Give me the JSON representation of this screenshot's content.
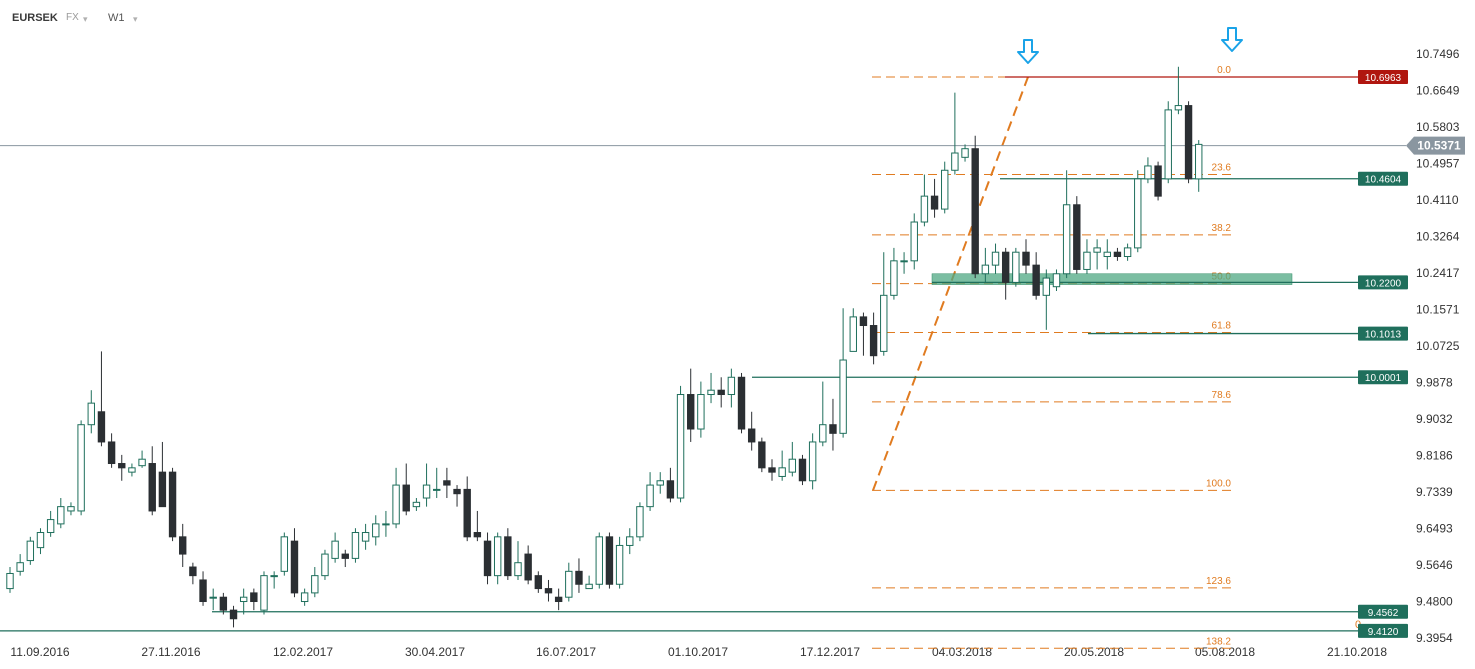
{
  "toolbar": {
    "symbol": "EURSEK",
    "instrument_type": "FX",
    "timeframe": "W1",
    "caret_glyph": "▾",
    "dropdown_icon": "chevron-down-icon"
  },
  "colors": {
    "bull_fill": "#ffffff",
    "bull_stroke": "#1f6f5c",
    "bear_fill": "#2b2f33",
    "fib": "#e07b20",
    "support_line": "#1f6f5c",
    "resistance_line": "#b0160f",
    "zone": "#4fa883",
    "current_price_line": "#8a96a0",
    "current_price_tag": "#8a96a0",
    "arrow": "#1aa3e8",
    "axis_text": "#333333"
  },
  "chart_data": {
    "type": "candlestick",
    "symbol": "EURSEK",
    "timeframe": "W1",
    "ylim": [
      9.38,
      10.8
    ],
    "y_ticks": [
      "10.7496",
      "10.6649",
      "10.5803",
      "10.4957",
      "10.4110",
      "10.3264",
      "10.2417",
      "10.1571",
      "10.0725",
      "9.9878",
      "9.9032",
      "9.8186",
      "9.7339",
      "9.6493",
      "9.5646",
      "9.4800",
      "9.3954"
    ],
    "x_ticks": [
      "11.09.2016",
      "27.11.2016",
      "12.02.2017",
      "30.04.2017",
      "16.07.2017",
      "01.10.2017",
      "17.12.2017",
      "04.03.2018",
      "20.05.2018",
      "05.08.2018",
      "21.10.2018"
    ],
    "current_price": "10.5371",
    "horizontal_levels": [
      {
        "label": "10.6963",
        "value": 10.6963,
        "kind": "resistance"
      },
      {
        "label": "10.4604",
        "value": 10.4604,
        "kind": "support"
      },
      {
        "label": "10.2200",
        "value": 10.22,
        "kind": "support"
      },
      {
        "label": "10.1013",
        "value": 10.1013,
        "kind": "support"
      },
      {
        "label": "10.0001",
        "value": 10.0001,
        "kind": "support"
      },
      {
        "label": "9.4562",
        "value": 9.4562,
        "kind": "support"
      },
      {
        "label": "9.4120",
        "value": 9.412,
        "kind": "support"
      }
    ],
    "support_zone": [
      10.215,
      10.24
    ],
    "fibonacci": [
      {
        "label": "0.0",
        "value": 10.6963
      },
      {
        "label": "23.6",
        "value": 10.4701
      },
      {
        "label": "38.2",
        "value": 10.3302
      },
      {
        "label": "50.0",
        "value": 10.217
      },
      {
        "label": "61.8",
        "value": 10.1039
      },
      {
        "label": "78.6",
        "value": 9.9428
      },
      {
        "label": "100.0",
        "value": 9.7377
      },
      {
        "label": "123.6",
        "value": 9.5115
      },
      {
        "label": "138.2",
        "value": 9.3716
      }
    ],
    "zero_marker": "0",
    "candles": [
      [
        9.51,
        9.545,
        9.5,
        9.56
      ],
      [
        9.55,
        9.57,
        9.54,
        9.59
      ],
      [
        9.575,
        9.62,
        9.565,
        9.63
      ],
      [
        9.605,
        9.64,
        9.59,
        9.65
      ],
      [
        9.64,
        9.67,
        9.63,
        9.69
      ],
      [
        9.66,
        9.7,
        9.65,
        9.72
      ],
      [
        9.69,
        9.7,
        9.68,
        9.71
      ],
      [
        9.69,
        9.89,
        9.68,
        9.9
      ],
      [
        9.89,
        9.94,
        9.87,
        9.97
      ],
      [
        9.92,
        9.85,
        9.84,
        10.06
      ],
      [
        9.85,
        9.8,
        9.79,
        9.87
      ],
      [
        9.8,
        9.79,
        9.76,
        9.82
      ],
      [
        9.78,
        9.79,
        9.77,
        9.8
      ],
      [
        9.795,
        9.81,
        9.79,
        9.83
      ],
      [
        9.8,
        9.69,
        9.68,
        9.84
      ],
      [
        9.78,
        9.7,
        9.7,
        9.85
      ],
      [
        9.78,
        9.63,
        9.62,
        9.79
      ],
      [
        9.63,
        9.59,
        9.56,
        9.66
      ],
      [
        9.56,
        9.54,
        9.52,
        9.57
      ],
      [
        9.53,
        9.48,
        9.47,
        9.55
      ],
      [
        9.49,
        9.49,
        9.46,
        9.51
      ],
      [
        9.49,
        9.46,
        9.45,
        9.5
      ],
      [
        9.46,
        9.44,
        9.42,
        9.47
      ],
      [
        9.48,
        9.49,
        9.45,
        9.51
      ],
      [
        9.5,
        9.48,
        9.46,
        9.51
      ],
      [
        9.46,
        9.54,
        9.45,
        9.55
      ],
      [
        9.54,
        9.54,
        9.51,
        9.55
      ],
      [
        9.55,
        9.63,
        9.54,
        9.64
      ],
      [
        9.62,
        9.5,
        9.49,
        9.65
      ],
      [
        9.48,
        9.5,
        9.47,
        9.51
      ],
      [
        9.5,
        9.54,
        9.49,
        9.56
      ],
      [
        9.54,
        9.59,
        9.53,
        9.6
      ],
      [
        9.58,
        9.62,
        9.57,
        9.64
      ],
      [
        9.59,
        9.58,
        9.56,
        9.6
      ],
      [
        9.58,
        9.64,
        9.57,
        9.65
      ],
      [
        9.62,
        9.64,
        9.6,
        9.66
      ],
      [
        9.63,
        9.66,
        9.61,
        9.68
      ],
      [
        9.66,
        9.66,
        9.63,
        9.69
      ],
      [
        9.66,
        9.75,
        9.65,
        9.79
      ],
      [
        9.75,
        9.69,
        9.68,
        9.8
      ],
      [
        9.7,
        9.71,
        9.69,
        9.72
      ],
      [
        9.72,
        9.75,
        9.7,
        9.8
      ],
      [
        9.74,
        9.74,
        9.72,
        9.79
      ],
      [
        9.76,
        9.75,
        9.72,
        9.79
      ],
      [
        9.74,
        9.73,
        9.7,
        9.75
      ],
      [
        9.74,
        9.63,
        9.62,
        9.77
      ],
      [
        9.64,
        9.63,
        9.62,
        9.69
      ],
      [
        9.62,
        9.54,
        9.52,
        9.64
      ],
      [
        9.54,
        9.63,
        9.52,
        9.64
      ],
      [
        9.63,
        9.54,
        9.53,
        9.65
      ],
      [
        9.54,
        9.57,
        9.53,
        9.62
      ],
      [
        9.59,
        9.53,
        9.52,
        9.61
      ],
      [
        9.54,
        9.51,
        9.5,
        9.55
      ],
      [
        9.51,
        9.5,
        9.48,
        9.53
      ],
      [
        9.49,
        9.48,
        9.46,
        9.51
      ],
      [
        9.49,
        9.55,
        9.48,
        9.57
      ],
      [
        9.55,
        9.52,
        9.5,
        9.58
      ],
      [
        9.51,
        9.52,
        9.51,
        9.54
      ],
      [
        9.52,
        9.63,
        9.51,
        9.64
      ],
      [
        9.63,
        9.52,
        9.51,
        9.64
      ],
      [
        9.52,
        9.61,
        9.51,
        9.63
      ],
      [
        9.61,
        9.63,
        9.59,
        9.65
      ],
      [
        9.63,
        9.7,
        9.62,
        9.71
      ],
      [
        9.7,
        9.75,
        9.69,
        9.78
      ],
      [
        9.75,
        9.76,
        9.73,
        9.78
      ],
      [
        9.76,
        9.72,
        9.71,
        9.79
      ],
      [
        9.72,
        9.96,
        9.71,
        9.98
      ],
      [
        9.96,
        9.88,
        9.85,
        10.02
      ],
      [
        9.88,
        9.96,
        9.86,
        9.99
      ],
      [
        9.96,
        9.97,
        9.94,
        10.01
      ],
      [
        9.97,
        9.96,
        9.93,
        10.0
      ],
      [
        9.96,
        10.0,
        9.93,
        10.02
      ],
      [
        10.0,
        9.88,
        9.87,
        10.01
      ],
      [
        9.88,
        9.85,
        9.83,
        9.92
      ],
      [
        9.85,
        9.79,
        9.78,
        9.86
      ],
      [
        9.79,
        9.78,
        9.76,
        9.81
      ],
      [
        9.77,
        9.79,
        9.76,
        9.83
      ],
      [
        9.78,
        9.81,
        9.77,
        9.85
      ],
      [
        9.81,
        9.76,
        9.75,
        9.82
      ],
      [
        9.76,
        9.85,
        9.74,
        9.87
      ],
      [
        9.85,
        9.89,
        9.84,
        9.99
      ],
      [
        9.89,
        9.87,
        9.83,
        9.95
      ],
      [
        9.87,
        10.04,
        9.86,
        10.16
      ],
      [
        10.06,
        10.14,
        10.06,
        10.16
      ],
      [
        10.14,
        10.12,
        10.05,
        10.15
      ],
      [
        10.12,
        10.05,
        10.03,
        10.15
      ],
      [
        10.06,
        10.19,
        10.05,
        10.29
      ],
      [
        10.19,
        10.27,
        10.18,
        10.3
      ],
      [
        10.27,
        10.27,
        10.24,
        10.29
      ],
      [
        10.27,
        10.36,
        10.25,
        10.38
      ],
      [
        10.36,
        10.42,
        10.35,
        10.47
      ],
      [
        10.42,
        10.39,
        10.37,
        10.46
      ],
      [
        10.39,
        10.48,
        10.38,
        10.5
      ],
      [
        10.48,
        10.52,
        10.47,
        10.66
      ],
      [
        10.51,
        10.53,
        10.5,
        10.54
      ],
      [
        10.53,
        10.24,
        10.23,
        10.56
      ],
      [
        10.24,
        10.26,
        10.22,
        10.3
      ],
      [
        10.26,
        10.29,
        10.24,
        10.31
      ],
      [
        10.29,
        10.22,
        10.18,
        10.3
      ],
      [
        10.22,
        10.29,
        10.21,
        10.3
      ],
      [
        10.29,
        10.26,
        10.24,
        10.32
      ],
      [
        10.26,
        10.19,
        10.18,
        10.29
      ],
      [
        10.19,
        10.23,
        10.11,
        10.25
      ],
      [
        10.21,
        10.24,
        10.2,
        10.25
      ],
      [
        10.24,
        10.4,
        10.23,
        10.48
      ],
      [
        10.4,
        10.25,
        10.24,
        10.42
      ],
      [
        10.25,
        10.29,
        10.24,
        10.32
      ],
      [
        10.29,
        10.3,
        10.25,
        10.32
      ],
      [
        10.28,
        10.29,
        10.25,
        10.32
      ],
      [
        10.29,
        10.28,
        10.27,
        10.3
      ],
      [
        10.28,
        10.3,
        10.27,
        10.31
      ],
      [
        10.3,
        10.46,
        10.29,
        10.48
      ],
      [
        10.46,
        10.49,
        10.45,
        10.51
      ],
      [
        10.49,
        10.42,
        10.41,
        10.5
      ],
      [
        10.46,
        10.62,
        10.45,
        10.64
      ],
      [
        10.62,
        10.63,
        10.61,
        10.72
      ],
      [
        10.63,
        10.46,
        10.45,
        10.64
      ],
      [
        10.46,
        10.54,
        10.43,
        10.55
      ]
    ]
  }
}
